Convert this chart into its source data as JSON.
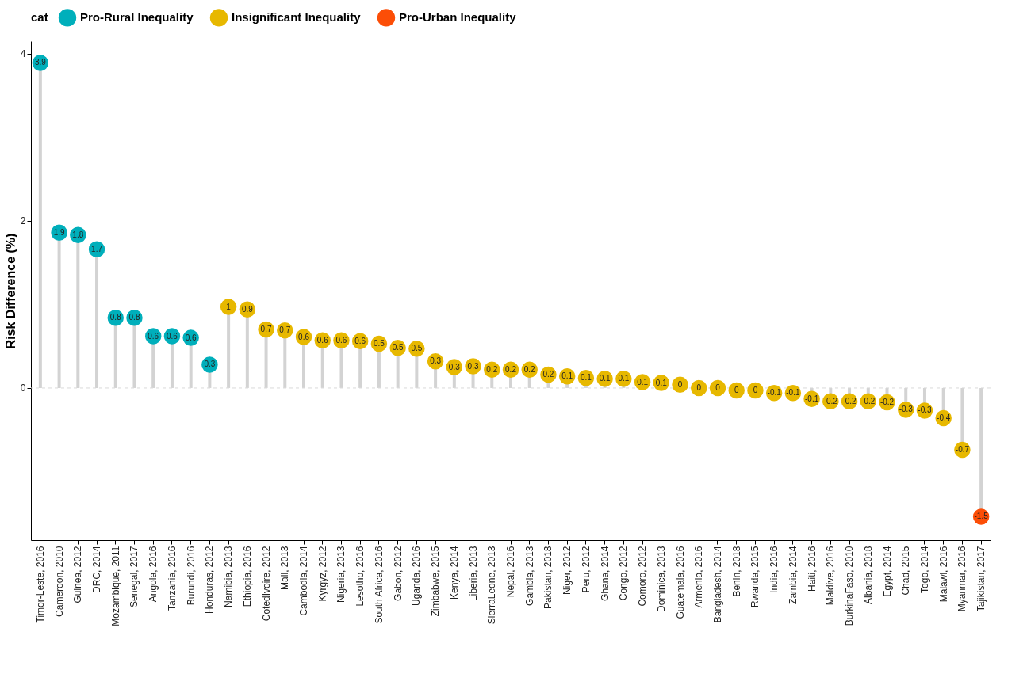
{
  "chart_data": {
    "type": "lollipop",
    "ylabel": "Risk Difference (%)",
    "legend_title": "cat",
    "legend": "top",
    "grid": false,
    "marker": "circle",
    "categories": [
      "Timor-Leste, 2016",
      "Cameroon, 2010",
      "Guinea, 2012",
      "DRC, 2014",
      "Mozambique, 2011",
      "Senegal, 2017",
      "Angola, 2016",
      "Tanzania, 2016",
      "Burundi, 2016",
      "Honduras, 2012",
      "Namibia, 2013",
      "Ethiopia, 2016",
      "CotedIvoire, 2012",
      "Mali, 2013",
      "Cambodia, 2014",
      "Kyrgyz, 2012",
      "Nigeria, 2013",
      "Lesotho, 2016",
      "South Africa, 2016",
      "Gabon, 2012",
      "Uganda, 2016",
      "Zimbabwe, 2015",
      "Kenya, 2014",
      "Liberia, 2013",
      "SierraLeone, 2013",
      "Nepal, 2016",
      "Gambia, 2013",
      "Pakistan, 2018",
      "Niger, 2012",
      "Peru, 2012",
      "Ghana, 2014",
      "Congo, 2012",
      "Comoro, 2012",
      "Dominica, 2013",
      "Guatemala, 2016",
      "Armenia, 2016",
      "Bangladesh, 2014",
      "Benin, 2018",
      "Rwanda, 2015",
      "India, 2016",
      "Zambia, 2014",
      "Haiti, 2016",
      "Maldive, 2016",
      "BurkinaFaso, 2010",
      "Albania, 2018",
      "Egypt, 2014",
      "Chad, 2015",
      "Togo, 2014",
      "Malawi, 2016",
      "Myanmar, 2016",
      "Tajikistan, 2017"
    ],
    "ylim": [
      -1.82,
      4.15
    ],
    "yticks": [
      0,
      2,
      4
    ],
    "ref_lines": [
      {
        "axis": "y",
        "value": 0,
        "color": "#d9d9d9",
        "line_style": "dashed"
      }
    ],
    "series": [
      {
        "name": "Pro-Rural Inequality",
        "color": "#00afbb",
        "values": [
          3.89,
          1.86,
          1.83,
          1.66,
          0.84,
          0.84,
          0.62,
          0.62,
          0.6,
          0.28,
          null,
          null,
          null,
          null,
          null,
          null,
          null,
          null,
          null,
          null,
          null,
          null,
          null,
          null,
          null,
          null,
          null,
          null,
          null,
          null,
          null,
          null,
          null,
          null,
          null,
          null,
          null,
          null,
          null,
          null,
          null,
          null,
          null,
          null,
          null,
          null,
          null,
          null,
          null,
          null,
          null
        ],
        "value_labels": [
          "3.9",
          "1.9",
          "1.8",
          "1.7",
          "0.8",
          "0.8",
          "0.6",
          "0.6",
          "0.6",
          "0.3",
          null,
          null,
          null,
          null,
          null,
          null,
          null,
          null,
          null,
          null,
          null,
          null,
          null,
          null,
          null,
          null,
          null,
          null,
          null,
          null,
          null,
          null,
          null,
          null,
          null,
          null,
          null,
          null,
          null,
          null,
          null,
          null,
          null,
          null,
          null,
          null,
          null,
          null,
          null,
          null,
          null
        ]
      },
      {
        "name": "Insignificant Inequality",
        "color": "#e7b800",
        "values": [
          null,
          null,
          null,
          null,
          null,
          null,
          null,
          null,
          null,
          null,
          0.97,
          0.94,
          0.7,
          0.69,
          0.61,
          0.57,
          0.57,
          0.56,
          0.53,
          0.48,
          0.47,
          0.32,
          0.25,
          0.26,
          0.22,
          0.22,
          0.22,
          0.16,
          0.14,
          0.12,
          0.11,
          0.11,
          0.07,
          0.06,
          0.04,
          0,
          0,
          -0.03,
          -0.03,
          -0.06,
          -0.06,
          -0.13,
          -0.16,
          -0.16,
          -0.16,
          -0.17,
          -0.26,
          -0.27,
          -0.36,
          -0.74,
          null
        ],
        "value_labels": [
          null,
          null,
          null,
          null,
          null,
          null,
          null,
          null,
          null,
          null,
          "1",
          "0.9",
          "0.7",
          "0.7",
          "0.6",
          "0.6",
          "0.6",
          "0.6",
          "0.5",
          "0.5",
          "0.5",
          "0.3",
          "0.3",
          "0.3",
          "0.2",
          "0.2",
          "0.2",
          "0.2",
          "0.1",
          "0.1",
          "0.1",
          "0.1",
          "0.1",
          "0.1",
          "0",
          "0",
          "0",
          "0",
          "0",
          "-0.1",
          "-0.1",
          "-0.1",
          "-0.2",
          "-0.2",
          "-0.2",
          "-0.2",
          "-0.3",
          "-0.3",
          "-0.4",
          "-0.7",
          null
        ]
      },
      {
        "name": "Pro-Urban Inequality",
        "color": "#fc4e07",
        "values": [
          null,
          null,
          null,
          null,
          null,
          null,
          null,
          null,
          null,
          null,
          null,
          null,
          null,
          null,
          null,
          null,
          null,
          null,
          null,
          null,
          null,
          null,
          null,
          null,
          null,
          null,
          null,
          null,
          null,
          null,
          null,
          null,
          null,
          null,
          null,
          null,
          null,
          null,
          null,
          null,
          null,
          null,
          null,
          null,
          null,
          null,
          null,
          null,
          null,
          null,
          -1.54
        ],
        "value_labels": [
          null,
          null,
          null,
          null,
          null,
          null,
          null,
          null,
          null,
          null,
          null,
          null,
          null,
          null,
          null,
          null,
          null,
          null,
          null,
          null,
          null,
          null,
          null,
          null,
          null,
          null,
          null,
          null,
          null,
          null,
          null,
          null,
          null,
          null,
          null,
          null,
          null,
          null,
          null,
          null,
          null,
          null,
          null,
          null,
          null,
          null,
          null,
          null,
          null,
          null,
          "-1.5"
        ]
      }
    ]
  }
}
